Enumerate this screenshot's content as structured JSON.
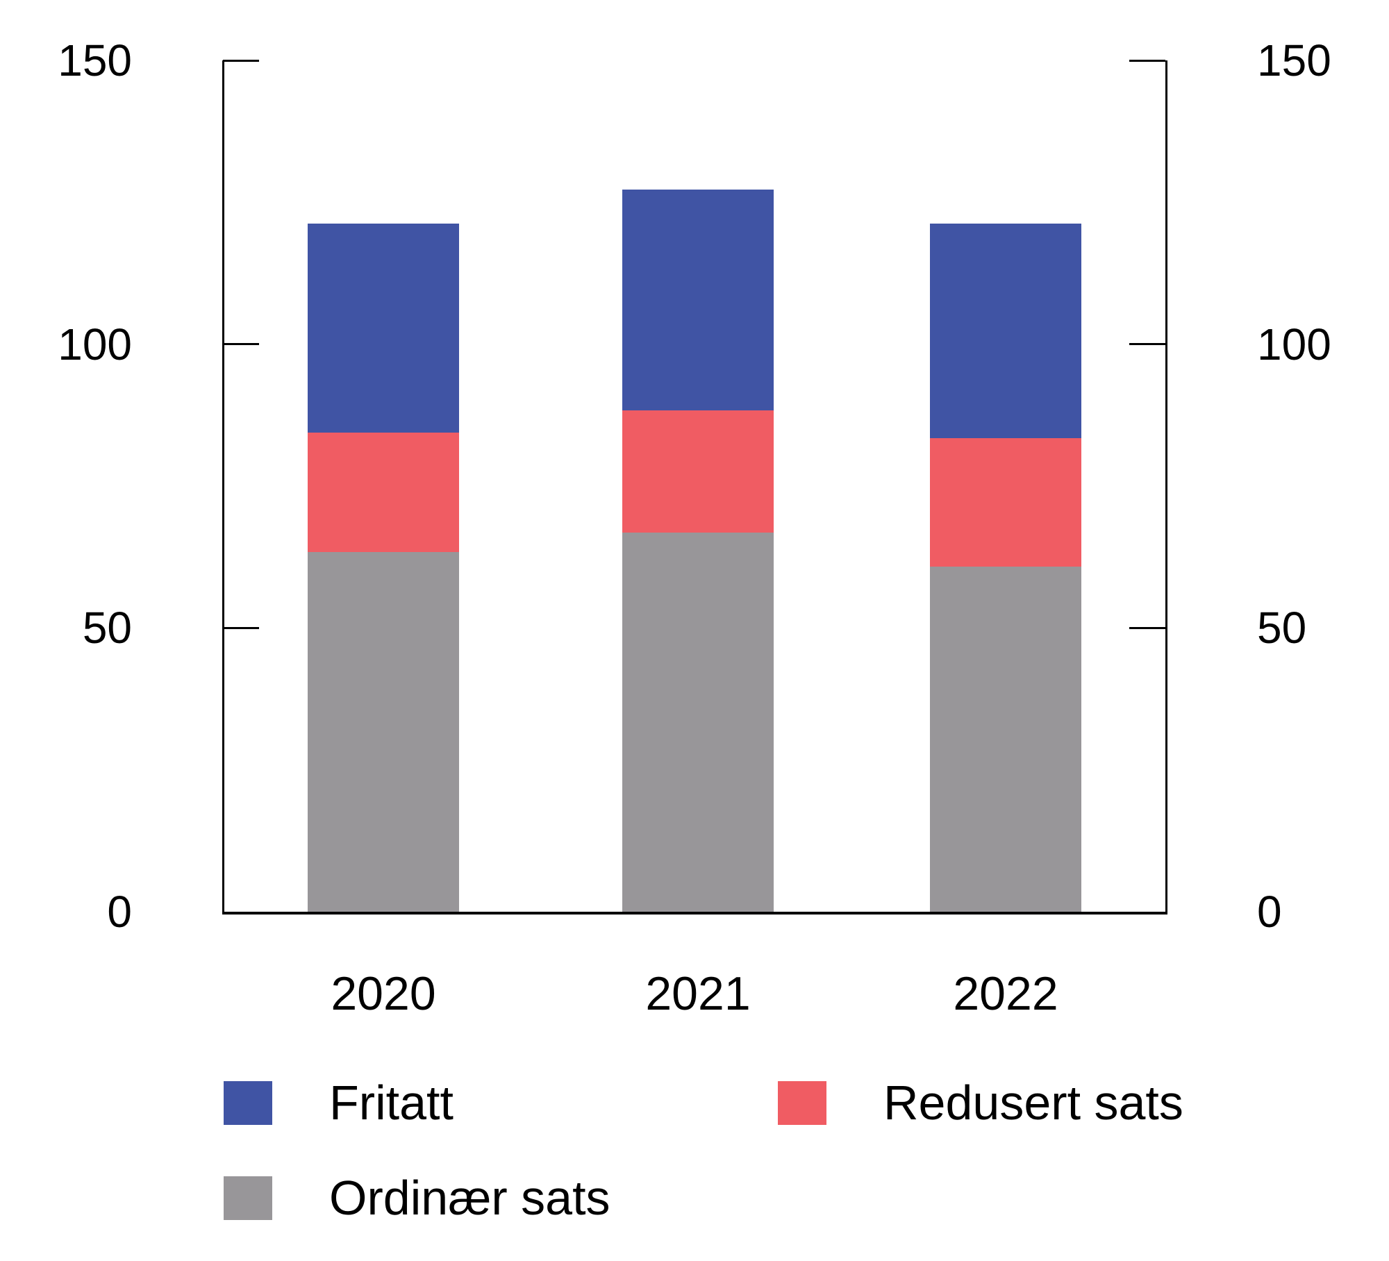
{
  "figure": {
    "background": "#ffffff",
    "text_color": "#000000",
    "axis_color": "#000000"
  },
  "chart_data": {
    "type": "bar",
    "stacked": true,
    "title": "",
    "xlabel": "",
    "ylabel": "",
    "categories": [
      "2020",
      "2021",
      "2022"
    ],
    "series": [
      {
        "name": "Ordinær sats",
        "color": "#989699",
        "values": [
          63.4,
          66.8,
          60.8
        ]
      },
      {
        "name": "Redusert sats",
        "color": "#F05C63",
        "values": [
          21.0,
          21.5,
          22.6
        ]
      },
      {
        "name": "Fritatt",
        "color": "#4054A4",
        "values": [
          36.9,
          39.0,
          37.9
        ]
      }
    ],
    "stack_totals": [
      121.3,
      127.3,
      121.3
    ],
    "ylim": [
      0,
      150
    ],
    "yticks": [
      0,
      50,
      100,
      150
    ],
    "ytick_labels": [
      "0",
      "50",
      "100",
      "150"
    ],
    "y_axis_sides": "both",
    "tick_direction": "in",
    "grid": false,
    "legend_position": "bottom-left",
    "legend_rows": [
      [
        "Fritatt",
        "Redusert sats"
      ],
      [
        "Ordinær sats"
      ]
    ]
  },
  "legend": {
    "item_1_label": "Fritatt",
    "item_2_label": "Redusert sats",
    "item_3_label": "Ordinær sats"
  }
}
